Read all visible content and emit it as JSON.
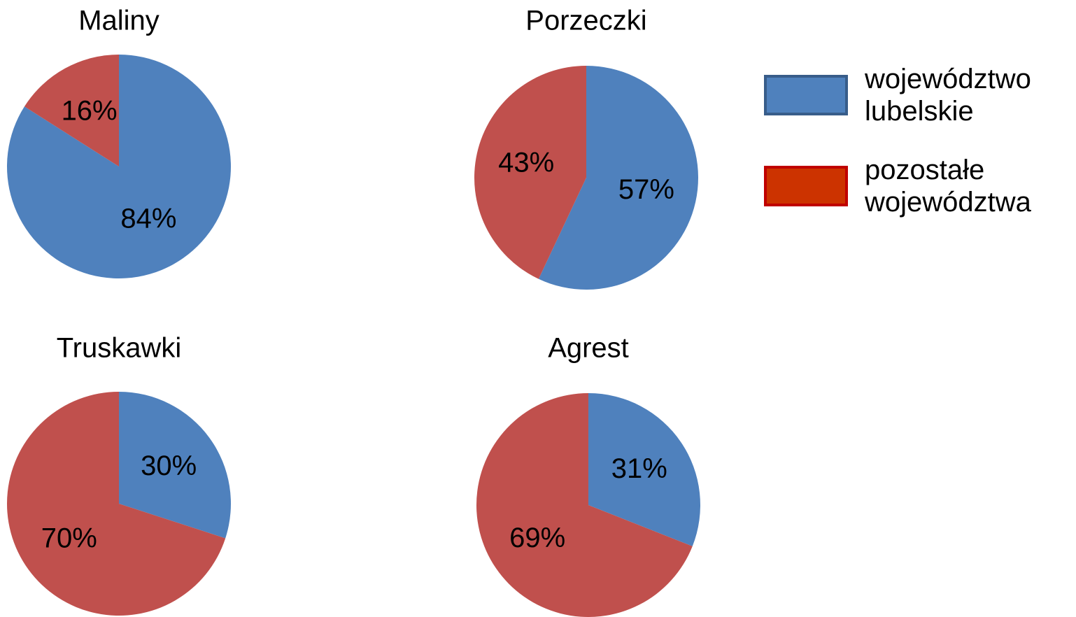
{
  "chart_data": [
    {
      "type": "pie",
      "title": "Maliny",
      "values": [
        84,
        16
      ],
      "value_labels": [
        "84%",
        "16%"
      ],
      "colors": [
        "#4f81bd",
        "#c0504d"
      ]
    },
    {
      "type": "pie",
      "title": "Porzeczki",
      "values": [
        57,
        43
      ],
      "value_labels": [
        "57%",
        "43%"
      ],
      "colors": [
        "#4f81bd",
        "#c0504d"
      ]
    },
    {
      "type": "pie",
      "title": "Truskawki",
      "values": [
        30,
        70
      ],
      "value_labels": [
        "30%",
        "70%"
      ],
      "colors": [
        "#4f81bd",
        "#c0504d"
      ]
    },
    {
      "type": "pie",
      "title": "Agrest",
      "values": [
        31,
        69
      ],
      "value_labels": [
        "31%",
        "69%"
      ],
      "colors": [
        "#4f81bd",
        "#c0504d"
      ]
    }
  ],
  "legend": {
    "entries": [
      {
        "name": "województwo lubelskie",
        "color": "#4f81bd",
        "border": "#385d8a"
      },
      {
        "name": "pozostałe województwa",
        "color": "#cc3300",
        "border": "#c00000"
      }
    ]
  }
}
